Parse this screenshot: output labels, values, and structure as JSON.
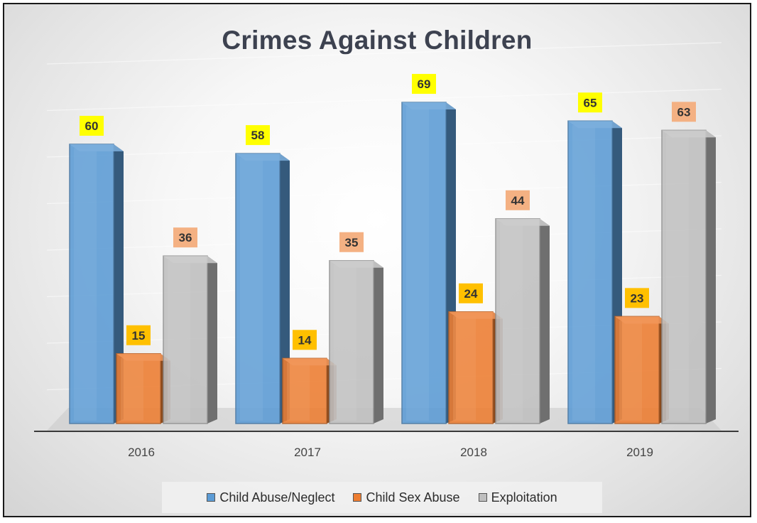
{
  "chart_data": {
    "type": "bar",
    "title": "Crimes Against Children",
    "categories": [
      "2016",
      "2017",
      "2018",
      "2019"
    ],
    "series": [
      {
        "name": "Child Abuse/Neglect",
        "values": [
          60,
          58,
          69,
          65
        ],
        "color": "#5b9bd5",
        "label_bg": "#ffff00"
      },
      {
        "name": "Child Sex Abuse",
        "values": [
          15,
          14,
          24,
          23
        ],
        "color": "#ed7d31",
        "label_bg": "#ffc000"
      },
      {
        "name": "Exploitation",
        "values": [
          36,
          35,
          44,
          63
        ],
        "color": "#bfbfbf",
        "label_bg": "#f4b183"
      }
    ],
    "ylim": [
      0,
      80
    ],
    "grid": true,
    "legend_position": "bottom",
    "style": "3d-clustered-column"
  }
}
